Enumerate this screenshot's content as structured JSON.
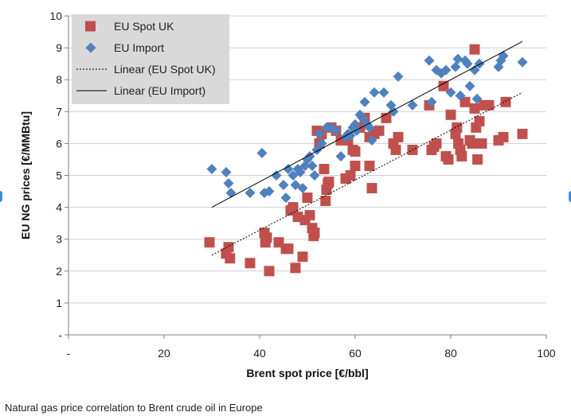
{
  "chart_data": {
    "type": "scatter",
    "xlabel": "Brent spot price [€/bbl]",
    "ylabel": "EU NG prices [€/MMBtu]",
    "xlim": [
      0,
      100
    ],
    "ylim": [
      0,
      10
    ],
    "x_ticks": [
      "-",
      "20",
      "40",
      "60",
      "80",
      "100"
    ],
    "y_ticks": [
      "-",
      "1",
      "2",
      "3",
      "4",
      "5",
      "6",
      "7",
      "8",
      "9",
      "10"
    ],
    "grid": "horizontal",
    "legend_position": "top-left",
    "legend": [
      "EU Spot UK",
      "EU Import",
      "Linear (EU Spot UK)",
      "Linear (EU Import)"
    ],
    "series": [
      {
        "name": "EU Spot UK",
        "marker": "square",
        "color": "#c0504d",
        "points": [
          [
            29.5,
            2.9
          ],
          [
            33,
            2.55
          ],
          [
            33.5,
            2.75
          ],
          [
            33.8,
            2.4
          ],
          [
            38,
            2.25
          ],
          [
            41,
            3.2
          ],
          [
            41.2,
            2.9
          ],
          [
            41.5,
            3.05
          ],
          [
            42,
            2.0
          ],
          [
            44,
            2.9
          ],
          [
            45.5,
            2.7
          ],
          [
            46,
            2.7
          ],
          [
            46.5,
            3.9
          ],
          [
            47,
            4.0
          ],
          [
            47.5,
            2.1
          ],
          [
            48,
            3.7
          ],
          [
            49,
            2.45
          ],
          [
            49.5,
            3.6
          ],
          [
            50,
            4.3
          ],
          [
            50.5,
            3.75
          ],
          [
            51,
            3.35
          ],
          [
            51.3,
            3.1
          ],
          [
            51.5,
            3.2
          ],
          [
            52,
            6.4
          ],
          [
            52.5,
            6.0
          ],
          [
            53,
            6.3
          ],
          [
            53.5,
            5.2
          ],
          [
            53.8,
            4.2
          ],
          [
            54,
            4.55
          ],
          [
            54.3,
            4.75
          ],
          [
            54.5,
            4.8
          ],
          [
            55,
            6.5
          ],
          [
            56,
            6.4
          ],
          [
            57,
            6.1
          ],
          [
            58,
            4.9
          ],
          [
            58.5,
            6.1
          ],
          [
            59,
            5.0
          ],
          [
            59.5,
            5.8
          ],
          [
            60,
            5.75
          ],
          [
            60,
            5.3
          ],
          [
            61,
            6.5
          ],
          [
            62,
            6.8
          ],
          [
            63,
            6.2
          ],
          [
            63,
            5.3
          ],
          [
            63.5,
            4.6
          ],
          [
            64,
            6.3
          ],
          [
            65,
            6.4
          ],
          [
            66.5,
            6.8
          ],
          [
            68,
            6.0
          ],
          [
            68.5,
            5.8
          ],
          [
            69,
            6.2
          ],
          [
            72,
            5.8
          ],
          [
            75.5,
            7.2
          ],
          [
            76,
            5.8
          ],
          [
            76.5,
            5.9
          ],
          [
            77,
            6.0
          ],
          [
            78.5,
            7.8
          ],
          [
            79,
            5.6
          ],
          [
            79.5,
            5.5
          ],
          [
            80,
            6.9
          ],
          [
            81,
            6.3
          ],
          [
            81.3,
            6.5
          ],
          [
            81.6,
            6.0
          ],
          [
            82,
            5.8
          ],
          [
            82.3,
            5.6
          ],
          [
            83,
            7.3
          ],
          [
            84,
            6.1
          ],
          [
            84.5,
            6.0
          ],
          [
            85,
            8.95
          ],
          [
            85,
            7.1
          ],
          [
            85.3,
            6.5
          ],
          [
            85.6,
            5.5
          ],
          [
            86,
            6.7
          ],
          [
            86.5,
            6.0
          ],
          [
            87,
            7.2
          ],
          [
            88,
            7.2
          ],
          [
            90,
            6.1
          ],
          [
            91,
            6.2
          ],
          [
            91.5,
            7.3
          ],
          [
            95,
            6.3
          ]
        ]
      },
      {
        "name": "EU Import",
        "marker": "diamond",
        "color": "#4f81bd",
        "points": [
          [
            30,
            5.2
          ],
          [
            33,
            5.1
          ],
          [
            33.5,
            4.75
          ],
          [
            34,
            4.45
          ],
          [
            38,
            4.45
          ],
          [
            40.5,
            5.7
          ],
          [
            41,
            4.45
          ],
          [
            42,
            4.5
          ],
          [
            43.5,
            5.0
          ],
          [
            45,
            4.7
          ],
          [
            45.5,
            4.3
          ],
          [
            46,
            5.2
          ],
          [
            47,
            5.0
          ],
          [
            47.5,
            4.7
          ],
          [
            48,
            5.2
          ],
          [
            48.5,
            5.1
          ],
          [
            49,
            4.6
          ],
          [
            49.5,
            5.3
          ],
          [
            50,
            5.5
          ],
          [
            50.5,
            5.6
          ],
          [
            51,
            5.3
          ],
          [
            51.5,
            5.0
          ],
          [
            52,
            5.8
          ],
          [
            52.5,
            6.3
          ],
          [
            53,
            6.0
          ],
          [
            54,
            6.5
          ],
          [
            55,
            6.5
          ],
          [
            56,
            6.4
          ],
          [
            57,
            5.6
          ],
          [
            58,
            6.2
          ],
          [
            58.5,
            6.3
          ],
          [
            59,
            6.25
          ],
          [
            59.5,
            6.5
          ],
          [
            60,
            6.6
          ],
          [
            60.3,
            6.4
          ],
          [
            61,
            6.9
          ],
          [
            61.5,
            6.8
          ],
          [
            62,
            7.3
          ],
          [
            62.5,
            6.6
          ],
          [
            63,
            6.5
          ],
          [
            63.5,
            6.1
          ],
          [
            64,
            7.6
          ],
          [
            66,
            7.6
          ],
          [
            67.5,
            7.2
          ],
          [
            68,
            7.0
          ],
          [
            69,
            8.1
          ],
          [
            72,
            7.2
          ],
          [
            75.5,
            8.6
          ],
          [
            76,
            7.3
          ],
          [
            77,
            8.3
          ],
          [
            78,
            8.2
          ],
          [
            79,
            8.3
          ],
          [
            80,
            7.6
          ],
          [
            81,
            8.4
          ],
          [
            81.5,
            8.65
          ],
          [
            82,
            7.5
          ],
          [
            83,
            8.6
          ],
          [
            83.5,
            8.5
          ],
          [
            84,
            7.8
          ],
          [
            85,
            8.3
          ],
          [
            85.5,
            7.4
          ],
          [
            86,
            8.5
          ],
          [
            90,
            8.4
          ],
          [
            90.5,
            8.6
          ],
          [
            91,
            8.75
          ],
          [
            95,
            8.55
          ]
        ]
      }
    ],
    "trendlines": [
      {
        "name": "Linear (EU Spot UK)",
        "style": "dotted",
        "x": [
          30,
          95
        ],
        "y": [
          2.5,
          7.6
        ]
      },
      {
        "name": "Linear (EU Import)",
        "style": "solid",
        "x": [
          30,
          95
        ],
        "y": [
          4.0,
          9.2
        ]
      }
    ]
  },
  "caption": "Natural gas price correlation to Brent crude oil in Europe"
}
